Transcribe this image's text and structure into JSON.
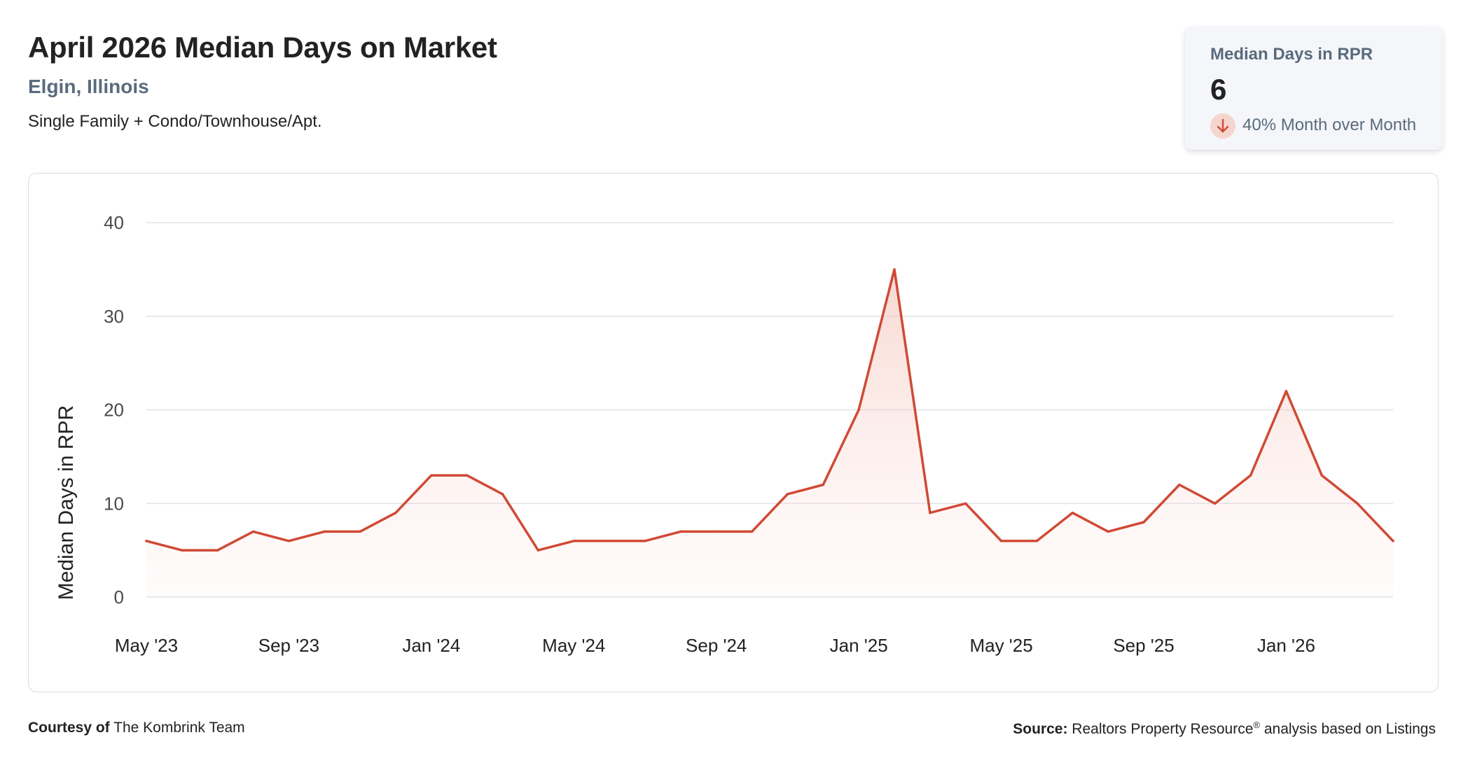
{
  "header": {
    "title": "April 2026 Median Days on Market",
    "location": "Elgin, Illinois",
    "subtitle": "Single Family + Condo/Townhouse/Apt."
  },
  "stat_card": {
    "label": "Median Days in RPR",
    "value": "6",
    "change_icon": "arrow-down-icon",
    "change_text": "40% Month over Month",
    "accent_color": "#d04a35",
    "icon_bg_color": "#f6d5cf"
  },
  "chart_data": {
    "type": "area",
    "title": "",
    "ylabel": "Median Days in RPR",
    "xlabel": "",
    "ylim": [
      0,
      40
    ],
    "yticks": [
      0,
      10,
      20,
      30,
      40
    ],
    "xtick_labels": [
      "May '23",
      "Sep '23",
      "Jan '24",
      "May '24",
      "Sep '24",
      "Jan '25",
      "May '25",
      "Sep '25",
      "Jan '26"
    ],
    "x": [
      "2023-05",
      "2023-06",
      "2023-07",
      "2023-08",
      "2023-09",
      "2023-10",
      "2023-11",
      "2023-12",
      "2024-01",
      "2024-02",
      "2024-03",
      "2024-04",
      "2024-05",
      "2024-06",
      "2024-07",
      "2024-08",
      "2024-09",
      "2024-10",
      "2024-11",
      "2024-12",
      "2025-01",
      "2025-02",
      "2025-03",
      "2025-04",
      "2025-05",
      "2025-06",
      "2025-07",
      "2025-08",
      "2025-09",
      "2025-10",
      "2025-11",
      "2025-12",
      "2026-01",
      "2026-02",
      "2026-03",
      "2026-04"
    ],
    "values": [
      6,
      5,
      5,
      7,
      6,
      7,
      7,
      9,
      13,
      13,
      11,
      5,
      6,
      6,
      6,
      7,
      7,
      7,
      11,
      12,
      20,
      35,
      9,
      10,
      6,
      6,
      9,
      7,
      8,
      12,
      10,
      13,
      22,
      13,
      10,
      6
    ],
    "grid": true,
    "line_color": "#d04a35",
    "fill_color": "#fbe3df"
  },
  "footer": {
    "courtesy_label": "Courtesy of",
    "courtesy_name": "The Kombrink Team",
    "source_label": "Source:",
    "source_text_1": "Realtors Property Resource",
    "source_mark": "®",
    "source_text_2": " analysis based on Listings"
  }
}
